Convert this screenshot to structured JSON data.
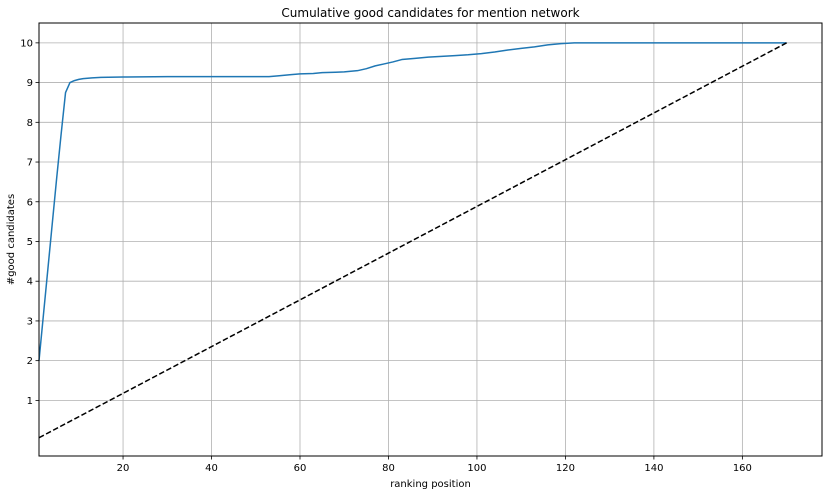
{
  "chart_data": {
    "type": "line",
    "title": "Cumulative good candidates for mention network",
    "xlabel": "ranking position",
    "ylabel": "#good candidates",
    "xlim": [
      1,
      178
    ],
    "ylim": [
      -0.4,
      10.5
    ],
    "x_ticks": [
      20,
      40,
      60,
      80,
      100,
      120,
      140,
      160
    ],
    "y_ticks": [
      1,
      2,
      3,
      4,
      5,
      6,
      7,
      8,
      9,
      10
    ],
    "grid": true,
    "series": [
      {
        "style": "solid",
        "color": "#1f77b4",
        "points": [
          [
            1,
            2.0
          ],
          [
            2,
            3.15
          ],
          [
            3,
            4.3
          ],
          [
            4,
            5.45
          ],
          [
            5,
            6.6
          ],
          [
            6,
            7.7
          ],
          [
            7,
            8.75
          ],
          [
            8,
            9.0
          ],
          [
            9,
            9.05
          ],
          [
            10,
            9.08
          ],
          [
            11,
            9.1
          ],
          [
            13,
            9.12
          ],
          [
            15,
            9.13
          ],
          [
            20,
            9.14
          ],
          [
            30,
            9.15
          ],
          [
            40,
            9.15
          ],
          [
            50,
            9.15
          ],
          [
            53,
            9.15
          ],
          [
            55,
            9.17
          ],
          [
            58,
            9.2
          ],
          [
            60,
            9.22
          ],
          [
            63,
            9.23
          ],
          [
            65,
            9.25
          ],
          [
            68,
            9.26
          ],
          [
            70,
            9.27
          ],
          [
            73,
            9.3
          ],
          [
            75,
            9.35
          ],
          [
            77,
            9.42
          ],
          [
            79,
            9.47
          ],
          [
            81,
            9.52
          ],
          [
            83,
            9.58
          ],
          [
            86,
            9.61
          ],
          [
            89,
            9.64
          ],
          [
            92,
            9.66
          ],
          [
            95,
            9.68
          ],
          [
            98,
            9.7
          ],
          [
            101,
            9.73
          ],
          [
            104,
            9.77
          ],
          [
            107,
            9.82
          ],
          [
            110,
            9.86
          ],
          [
            113,
            9.9
          ],
          [
            116,
            9.95
          ],
          [
            119,
            9.98
          ],
          [
            122,
            10.0
          ],
          [
            130,
            10.0
          ],
          [
            150,
            10.0
          ],
          [
            170,
            10.0
          ]
        ]
      },
      {
        "style": "dashed",
        "color": "#000000",
        "points": [
          [
            1,
            0.06
          ],
          [
            170,
            10.0
          ]
        ]
      }
    ]
  }
}
